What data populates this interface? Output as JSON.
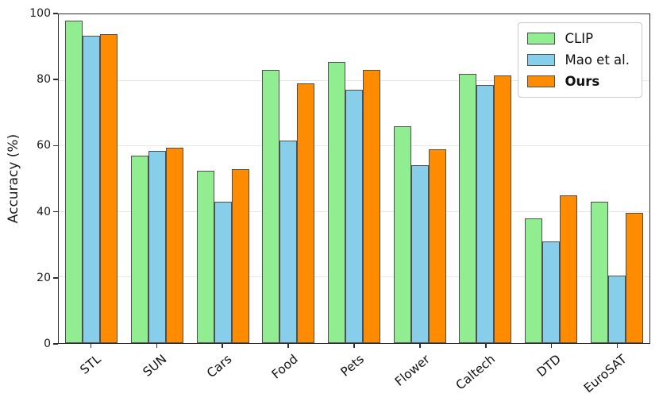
{
  "chart_data": {
    "type": "bar",
    "title": "",
    "xlabel": "",
    "ylabel": "Accuracy (%)",
    "categories": [
      "STL",
      "SUN",
      "Cars",
      "Food",
      "Pets",
      "Flower",
      "Caltech",
      "DTD",
      "EuroSAT"
    ],
    "series": [
      {
        "name": "CLIP",
        "color": "#90EE90",
        "bold": false,
        "values": [
          98,
          57,
          52.5,
          83,
          85.5,
          66,
          82,
          38,
          43
        ]
      },
      {
        "name": "Mao et al.",
        "color": "#87CEEB",
        "bold": false,
        "values": [
          93.5,
          58.5,
          43,
          61.5,
          77,
          54,
          78.5,
          31,
          20.5
        ]
      },
      {
        "name": "Ours",
        "color": "#FF8C00",
        "bold": true,
        "values": [
          94,
          59.5,
          53,
          79,
          83,
          59,
          81.5,
          45,
          39.5
        ]
      }
    ],
    "ylim": [
      0,
      100
    ],
    "yticks": [
      0,
      20,
      40,
      60,
      80,
      100
    ],
    "grid": true,
    "legend_position": "upper right",
    "bar_edge_color": "#4f4f4f",
    "grid_color": "#e7e7e7"
  }
}
